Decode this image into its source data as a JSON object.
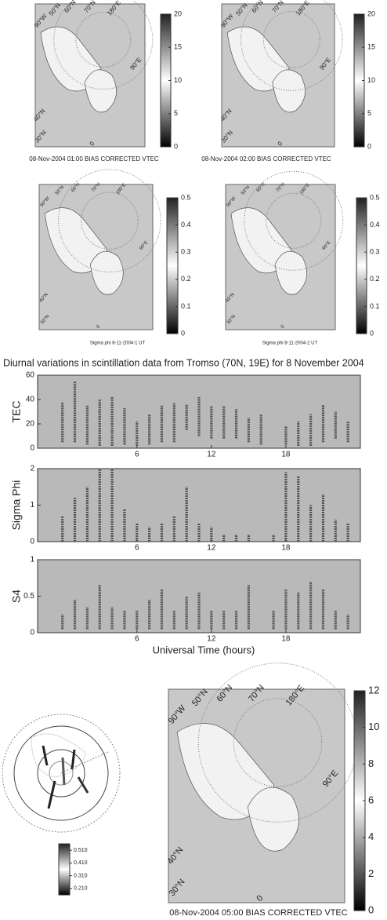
{
  "maps": [
    {
      "caption": "08-Nov-2004 01:00  BIAS CORRECTED VTEC",
      "cbar_ticks": [
        0,
        5,
        10,
        15,
        20
      ],
      "cbar_lim": [
        0,
        20
      ],
      "labels": [
        "90°W",
        "50°N",
        "60°N",
        "70°N",
        "180°E",
        "90°E",
        "40°N",
        "30°N",
        "0"
      ]
    },
    {
      "caption": "08-Nov-2004 02:00  BIAS CORRECTED VTEC",
      "cbar_ticks": [
        0,
        5,
        10,
        15,
        20
      ],
      "cbar_lim": [
        0,
        20
      ],
      "labels": [
        "90°W",
        "50°N",
        "60°N",
        "70°N",
        "180°E",
        "90°E",
        "40°N",
        "30°N",
        "0"
      ]
    },
    {
      "caption": "Sigma phi 8-11-2004-1 UT",
      "cbar_ticks": [
        0,
        0.1,
        0.2,
        0.3,
        0.4,
        0.5
      ],
      "cbar_lim": [
        0,
        0.5
      ],
      "labels": [
        "90°W",
        "50°N",
        "60°N",
        "70°N",
        "180°E",
        "90°E",
        "40°N",
        "30°N",
        "0"
      ]
    },
    {
      "caption": "Sigma phi 8-11-2004-2 UT",
      "cbar_ticks": [
        0,
        0.1,
        0.2,
        0.3,
        0.4,
        0.5
      ],
      "cbar_lim": [
        0,
        0.5
      ],
      "labels": [
        "90°W",
        "50°N",
        "60°N",
        "70°N",
        "180°E",
        "90°E",
        "40°N",
        "30°N",
        "0"
      ]
    },
    {
      "caption": "08-Nov-2004 05:00  BIAS CORRECTED VTEC",
      "cbar_ticks": [
        0,
        2,
        4,
        6,
        8,
        10,
        12
      ],
      "cbar_lim": [
        0,
        12
      ],
      "labels": [
        "90°W",
        "50°N",
        "60°N",
        "70°N",
        "180°E",
        "90°E",
        "40°N",
        "30°N",
        "0"
      ]
    }
  ],
  "inset_cbar": {
    "ticks": [
      {
        "value": 0.51,
        "label": "0.510"
      },
      {
        "value": 0.41,
        "label": "0.410"
      },
      {
        "value": 0.31,
        "label": "0.310"
      },
      {
        "value": 0.21,
        "label": "0.210"
      }
    ],
    "lim": [
      0.16,
      0.56
    ]
  },
  "chart_data": {
    "type": "range-scatter",
    "title": "Diurnal variations in scintillation data from Tromso (70N, 19E) for 8 November 2004",
    "xlabel": "Universal Time (hours)",
    "xlim": [
      -2,
      24
    ],
    "xticks": [
      6,
      12,
      18
    ],
    "x": [
      0,
      1,
      2,
      3,
      4,
      5,
      6,
      7,
      8,
      9,
      10,
      11,
      12,
      13,
      14,
      15,
      16,
      17,
      18,
      19,
      20,
      21,
      22,
      23
    ],
    "panels": [
      {
        "ylabel": "TEC",
        "ylim": [
          0,
          60
        ],
        "yticks": [
          0,
          20,
          40,
          60
        ],
        "low": [
          5,
          5,
          3,
          2,
          2,
          3,
          2,
          3,
          5,
          5,
          15,
          10,
          8,
          8,
          8,
          5,
          3,
          null,
          3,
          2,
          2,
          5,
          8,
          5
        ],
        "high": [
          38,
          55,
          35,
          40,
          42,
          33,
          22,
          28,
          35,
          37,
          36,
          42,
          35,
          35,
          32,
          25,
          28,
          null,
          18,
          22,
          28,
          36,
          30,
          22
        ]
      },
      {
        "ylabel": "Sigma Phi",
        "ylim": [
          0,
          2
        ],
        "yticks": [
          0,
          1,
          2
        ],
        "low": [
          0,
          0,
          0,
          0,
          0,
          0,
          0,
          0,
          0,
          0,
          0,
          0,
          0,
          0,
          0,
          0,
          null,
          0,
          0,
          0,
          0,
          0,
          0,
          0
        ],
        "high": [
          0.7,
          1.2,
          1.5,
          2,
          2,
          0.9,
          0.5,
          0.4,
          0.5,
          0.7,
          1.5,
          0.5,
          0.4,
          0.2,
          0.2,
          0.2,
          null,
          0.2,
          1.9,
          1.8,
          1.0,
          1.3,
          0.6,
          0.5
        ]
      },
      {
        "ylabel": "S4",
        "ylim": [
          0,
          1
        ],
        "yticks": [
          0,
          0.5,
          1
        ],
        "low": [
          0.05,
          0.05,
          0.05,
          0.05,
          0.05,
          0.05,
          0.05,
          0.05,
          0.05,
          0.05,
          0.05,
          0.05,
          0.05,
          0.05,
          0.05,
          0.05,
          null,
          0.05,
          0.05,
          0.05,
          0.05,
          0.05,
          0.05,
          0.05
        ],
        "high": [
          0.25,
          0.45,
          0.35,
          0.65,
          0.35,
          0.3,
          0.3,
          0.45,
          0.6,
          0.3,
          0.5,
          0.55,
          0.3,
          0.3,
          0.3,
          0.65,
          null,
          0.3,
          0.6,
          0.55,
          0.7,
          0.6,
          0.3,
          0.25
        ]
      }
    ]
  }
}
